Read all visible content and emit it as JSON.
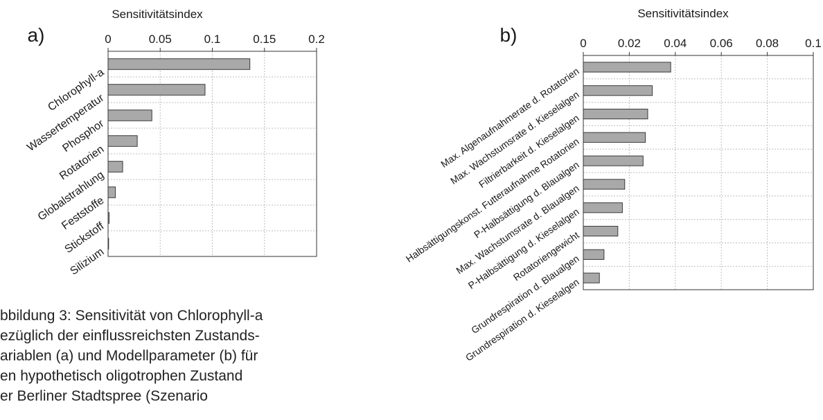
{
  "chart_data": [
    {
      "type": "bar",
      "orientation": "horizontal",
      "panel_label": "a)",
      "title": "Sensitivitätsindex",
      "xlabel": "Sensitivitätsindex",
      "ylabel": "",
      "xlim": [
        0,
        0.2
      ],
      "ticks": [
        "0",
        "0.05",
        "0.1",
        "0.15",
        "0.2"
      ],
      "tick_values": [
        0,
        0.05,
        0.1,
        0.15,
        0.2
      ],
      "categories": [
        "Chlorophyll-a",
        "Wassertemperatur",
        "Phosphor",
        "Rotatorien",
        "Globalstrahlung",
        "Feststoffe",
        "Stickstoff",
        "Silizium"
      ],
      "values": [
        0.136,
        0.093,
        0.042,
        0.028,
        0.014,
        0.007,
        0.001,
        0.0
      ],
      "grid": true,
      "bar_color": "#a9a9a9"
    },
    {
      "type": "bar",
      "orientation": "horizontal",
      "panel_label": "b)",
      "title": "Sensitivitätsindex",
      "xlabel": "Sensitivitätsindex",
      "ylabel": "",
      "xlim": [
        0,
        0.1
      ],
      "ticks": [
        "0",
        "0.02",
        "0.04",
        "0.06",
        "0.08",
        "0.1"
      ],
      "tick_values": [
        0,
        0.02,
        0.04,
        0.06,
        0.08,
        0.1
      ],
      "categories": [
        "Max. Algenaufnahmerate d. Rotatorien",
        "Max. Wachstumsrate d. Kieselalgen",
        "Filtrierbarkeit d. Kieselalgen",
        "Halbsättigungskonst. Futteraufnahme Rotatorien",
        "P-Halbsättigung d. Blaualgen",
        "Max. Wachstumsrate d. Blaualgen",
        "P-Halbsättigung d. Kieselalgen",
        "Rotatoriengewicht",
        "Grundrespiration d. Blaualgen",
        "Grundrespiration d. Kieselalgen"
      ],
      "values": [
        0.038,
        0.03,
        0.028,
        0.027,
        0.026,
        0.018,
        0.017,
        0.015,
        0.009,
        0.007
      ],
      "grid": true,
      "bar_color": "#a9a9a9"
    }
  ],
  "caption_lines": [
    "bbildung 3: Sensitivität von Chlorophyll-a",
    "ezüglich der einflussreichsten Zustands-",
    "ariablen (a) und Modellparameter (b) für",
    "en hypothetisch oligotrophen Zustand",
    "er Berliner Stadtspree (Szenario"
  ]
}
